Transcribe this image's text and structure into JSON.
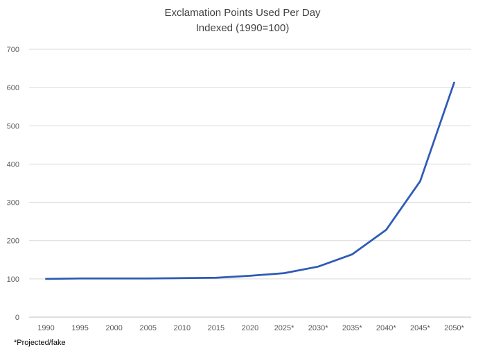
{
  "chart_data": {
    "type": "line",
    "title": "Exclamation Points Used Per Day",
    "subtitle": "Indexed (1990=100)",
    "xlabel": "",
    "ylabel": "",
    "categories": [
      "1990",
      "1995",
      "2000",
      "2005",
      "2010",
      "2015",
      "2020",
      "2025*",
      "2030*",
      "2035*",
      "2040*",
      "2045*",
      "2050*"
    ],
    "series": [
      {
        "name": "Exclamation Points Used Per Day",
        "values": [
          100,
          101,
          101,
          101,
          102,
          103,
          108,
          115,
          132,
          164,
          228,
          355,
          613
        ],
        "color": "#2E5BB5"
      }
    ],
    "ylim": [
      0,
      700
    ],
    "yticks": [
      0,
      100,
      200,
      300,
      400,
      500,
      600,
      700
    ],
    "grid": true,
    "footnote": "*Projected/fake"
  },
  "colors": {
    "grid": "#D9D9D9",
    "axis": "#BFBFBF",
    "tick_text": "#595959"
  }
}
